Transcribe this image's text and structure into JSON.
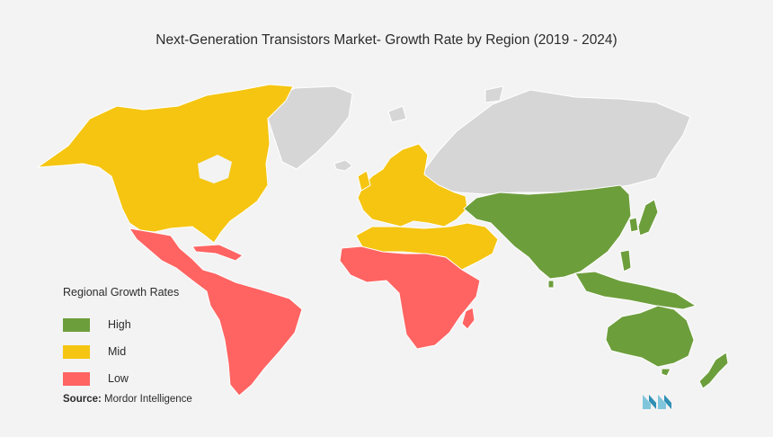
{
  "title": "Next-Generation Transistors Market- Growth Rate by Region (2019 - 2024)",
  "legend": {
    "title": "Regional Growth Rates",
    "items": [
      {
        "label": "High",
        "color": "#6d9e3c"
      },
      {
        "label": "Mid",
        "color": "#f5c511"
      },
      {
        "label": "Low",
        "color": "#ff6462"
      }
    ]
  },
  "source": {
    "label": "Source:",
    "text": "Mordor Intelligence"
  },
  "colors": {
    "background": "#f3f3f3",
    "no_data": "#d6d6d6",
    "border": "#ffffff"
  },
  "regions": [
    {
      "name": "North America",
      "rate": "Mid"
    },
    {
      "name": "Europe",
      "rate": "Mid"
    },
    {
      "name": "Middle East & North Africa",
      "rate": "Mid"
    },
    {
      "name": "Asia Pacific",
      "rate": "High"
    },
    {
      "name": "Australia & New Zealand",
      "rate": "High"
    },
    {
      "name": "Latin America",
      "rate": "Low"
    },
    {
      "name": "Sub-Saharan Africa",
      "rate": "Low"
    },
    {
      "name": "Russia & Greenland",
      "rate": "No data"
    }
  ]
}
